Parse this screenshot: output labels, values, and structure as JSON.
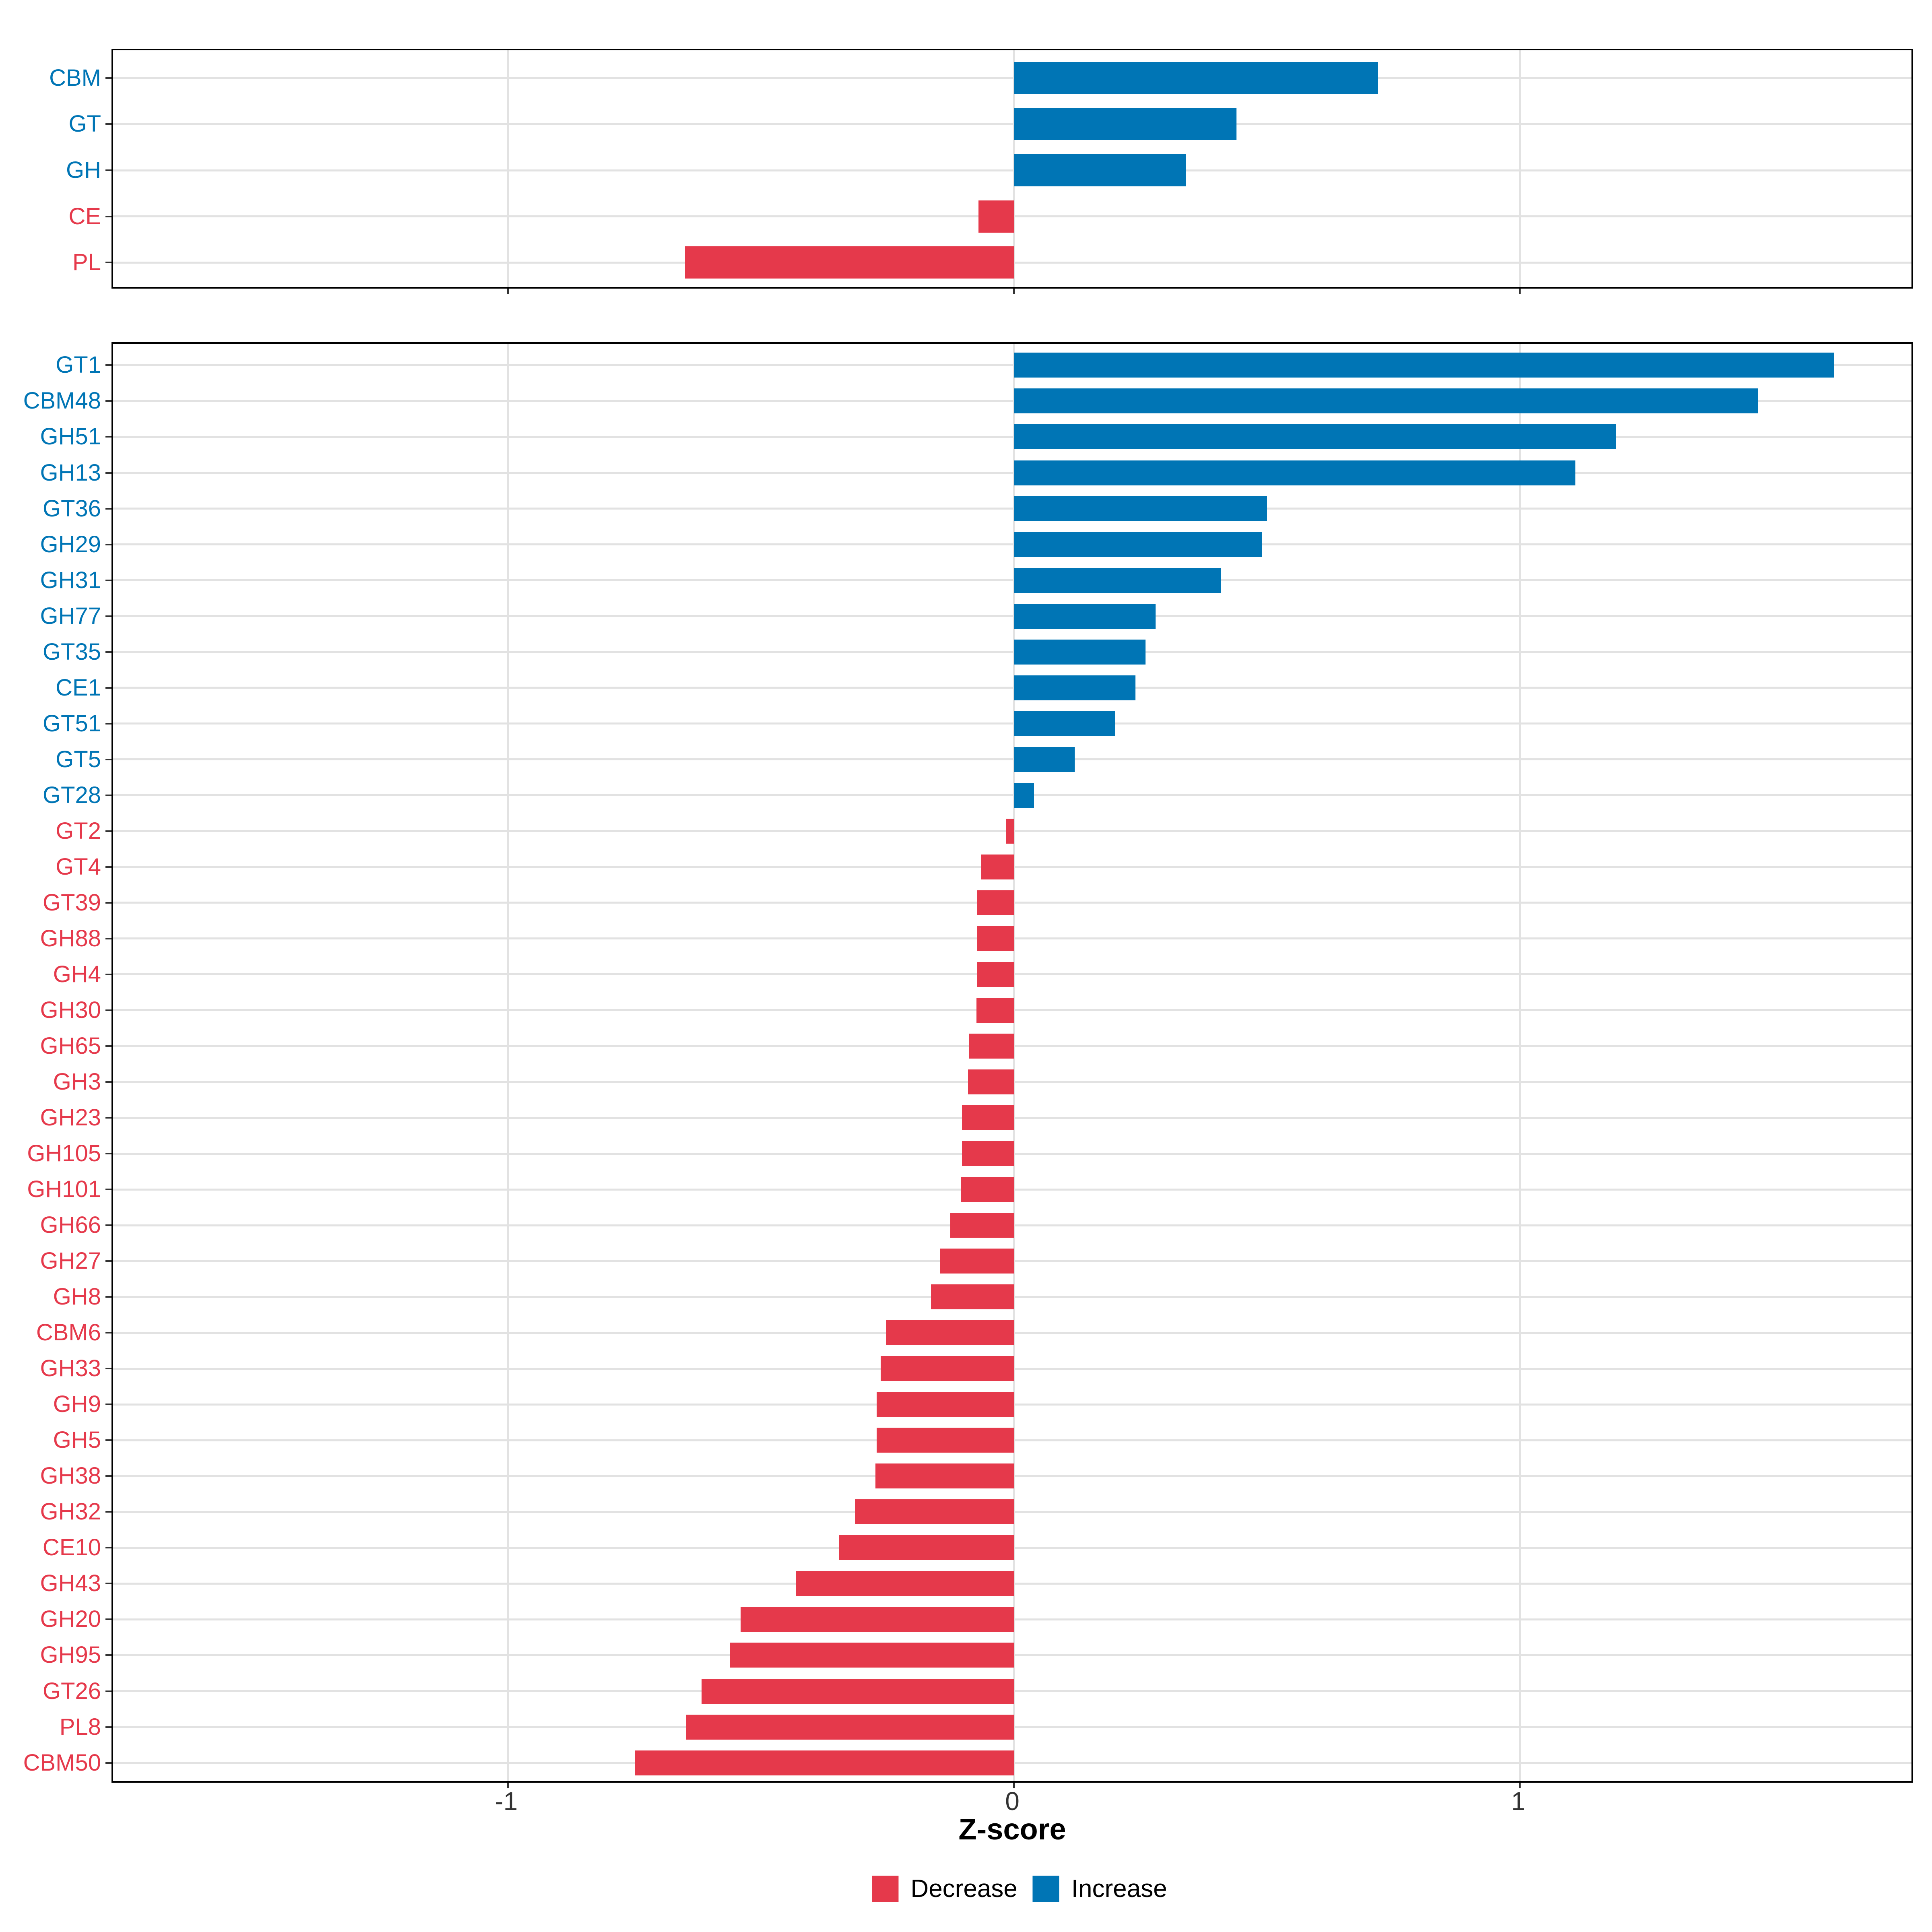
{
  "axis": {
    "title": "Z-score",
    "ticks": [
      {
        "label": "-1",
        "value": -1
      },
      {
        "label": "0",
        "value": 0
      },
      {
        "label": "1",
        "value": 1
      }
    ]
  },
  "legend": {
    "items": [
      {
        "label": "Decrease",
        "color_key": "decrease"
      },
      {
        "label": "Increase",
        "color_key": "increase"
      }
    ]
  },
  "colors": {
    "increase": "#0075B5",
    "decrease": "#E5394B",
    "grid": "#E2E2E2",
    "panel_border": "#000000",
    "tick_mark": "#333333",
    "tick_text": "#333333"
  },
  "chart_data": [
    {
      "type": "bar",
      "orientation": "horizontal",
      "panel": "top",
      "title": "",
      "xlabel": "Z-score",
      "xlim": [
        -1.78,
        1.78
      ],
      "grid": "major-only",
      "legend_position": "bottom",
      "categories": [
        "CBM",
        "GT",
        "GH",
        "CE",
        "PL"
      ],
      "values": [
        0.72,
        0.44,
        0.34,
        -0.07,
        -0.65
      ]
    },
    {
      "type": "bar",
      "orientation": "horizontal",
      "panel": "bottom",
      "title": "",
      "xlabel": "Z-score",
      "xlim": [
        -1.78,
        1.78
      ],
      "grid": "major-only",
      "legend_position": "bottom",
      "categories": [
        "GT1",
        "CBM48",
        "GH51",
        "GH13",
        "GT36",
        "GH29",
        "GH31",
        "GH77",
        "GT35",
        "CE1",
        "GT51",
        "GT5",
        "GT28",
        "GT2",
        "GT4",
        "GT39",
        "GH88",
        "GH4",
        "GH30",
        "GH65",
        "GH3",
        "GH23",
        "GH105",
        "GH101",
        "GH66",
        "GH27",
        "GH8",
        "CBM6",
        "GH33",
        "GH9",
        "GH5",
        "GH38",
        "GH32",
        "CE10",
        "GH43",
        "GH20",
        "GH95",
        "GT26",
        "PL8",
        "CBM50"
      ],
      "values": [
        1.62,
        1.47,
        1.19,
        1.11,
        0.5,
        0.49,
        0.41,
        0.28,
        0.26,
        0.24,
        0.2,
        0.12,
        0.04,
        -0.015,
        -0.065,
        -0.073,
        -0.073,
        -0.073,
        -0.074,
        -0.089,
        -0.091,
        -0.103,
        -0.103,
        -0.104,
        -0.126,
        -0.146,
        -0.164,
        -0.253,
        -0.263,
        -0.271,
        -0.271,
        -0.274,
        -0.314,
        -0.346,
        -0.43,
        -0.54,
        -0.561,
        -0.617,
        -0.648,
        -0.749
      ]
    }
  ]
}
